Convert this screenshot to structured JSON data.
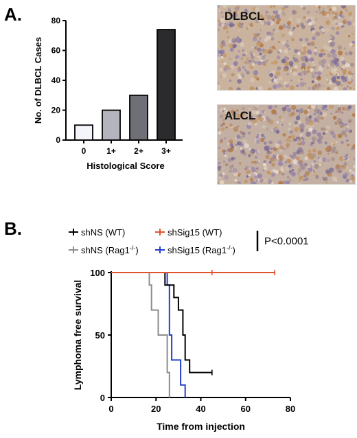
{
  "panels": {
    "a_label": "A.",
    "b_label": "B."
  },
  "micrographs": [
    {
      "label": "DLBCL"
    },
    {
      "label": "ALCL"
    }
  ],
  "chart_data": [
    {
      "type": "bar",
      "categories": [
        "0",
        "1+",
        "2+",
        "3+"
      ],
      "values": [
        10,
        20,
        30,
        74
      ],
      "colors": [
        "#f4f4fb",
        "#b4b4bc",
        "#6f6f76",
        "#2b2b2d"
      ],
      "xlabel": "Histological Score",
      "ylabel": "No. of DLBCL Cases",
      "ylim": [
        0,
        80
      ],
      "yticks": [
        0,
        20,
        40,
        60,
        80
      ]
    },
    {
      "type": "line",
      "step": true,
      "xlabel": "Time from injection",
      "ylabel": "Lymphoma free survival",
      "xlim": [
        0,
        80
      ],
      "ylim": [
        0,
        100
      ],
      "xticks": [
        0,
        20,
        40,
        60,
        80
      ],
      "yticks": [
        0,
        50,
        100
      ],
      "pvalue": "P<0.0001",
      "legend_position": "top",
      "series": [
        {
          "name": "shNS (WT)",
          "color": "#000000",
          "points": [
            [
              0,
              100
            ],
            [
              24,
              100
            ],
            [
              24,
              90
            ],
            [
              28,
              90
            ],
            [
              28,
              80
            ],
            [
              30,
              80
            ],
            [
              30,
              70
            ],
            [
              32,
              70
            ],
            [
              32,
              50
            ],
            [
              33,
              50
            ],
            [
              33,
              30
            ],
            [
              35,
              30
            ],
            [
              35,
              20
            ],
            [
              45,
              20
            ]
          ],
          "censor": [
            [
              45,
              20
            ]
          ]
        },
        {
          "name": "shSig15 (WT)",
          "color": "#e0532b",
          "points": [
            [
              0,
              100
            ],
            [
              73,
              100
            ]
          ],
          "censor": [
            [
              45,
              100
            ],
            [
              73,
              100
            ]
          ]
        },
        {
          "name": "shNS (Rag1",
          "sup": "-/-",
          "name_end": ")",
          "color": "#8c8c8c",
          "points": [
            [
              0,
              100
            ],
            [
              17,
              100
            ],
            [
              17,
              90
            ],
            [
              18,
              90
            ],
            [
              18,
              70
            ],
            [
              21,
              70
            ],
            [
              21,
              50
            ],
            [
              25,
              50
            ],
            [
              25,
              20
            ],
            [
              26,
              20
            ],
            [
              26,
              0
            ]
          ],
          "censor": []
        },
        {
          "name": "shSig15 (Rag1",
          "sup": "-/-",
          "name_end": ")",
          "color": "#2340c8",
          "points": [
            [
              0,
              100
            ],
            [
              25,
              100
            ],
            [
              25,
              90
            ],
            [
              26,
              90
            ],
            [
              26,
              50
            ],
            [
              27,
              50
            ],
            [
              27,
              30
            ],
            [
              31,
              30
            ],
            [
              31,
              10
            ],
            [
              33,
              10
            ],
            [
              33,
              0
            ]
          ],
          "censor": []
        }
      ]
    }
  ]
}
